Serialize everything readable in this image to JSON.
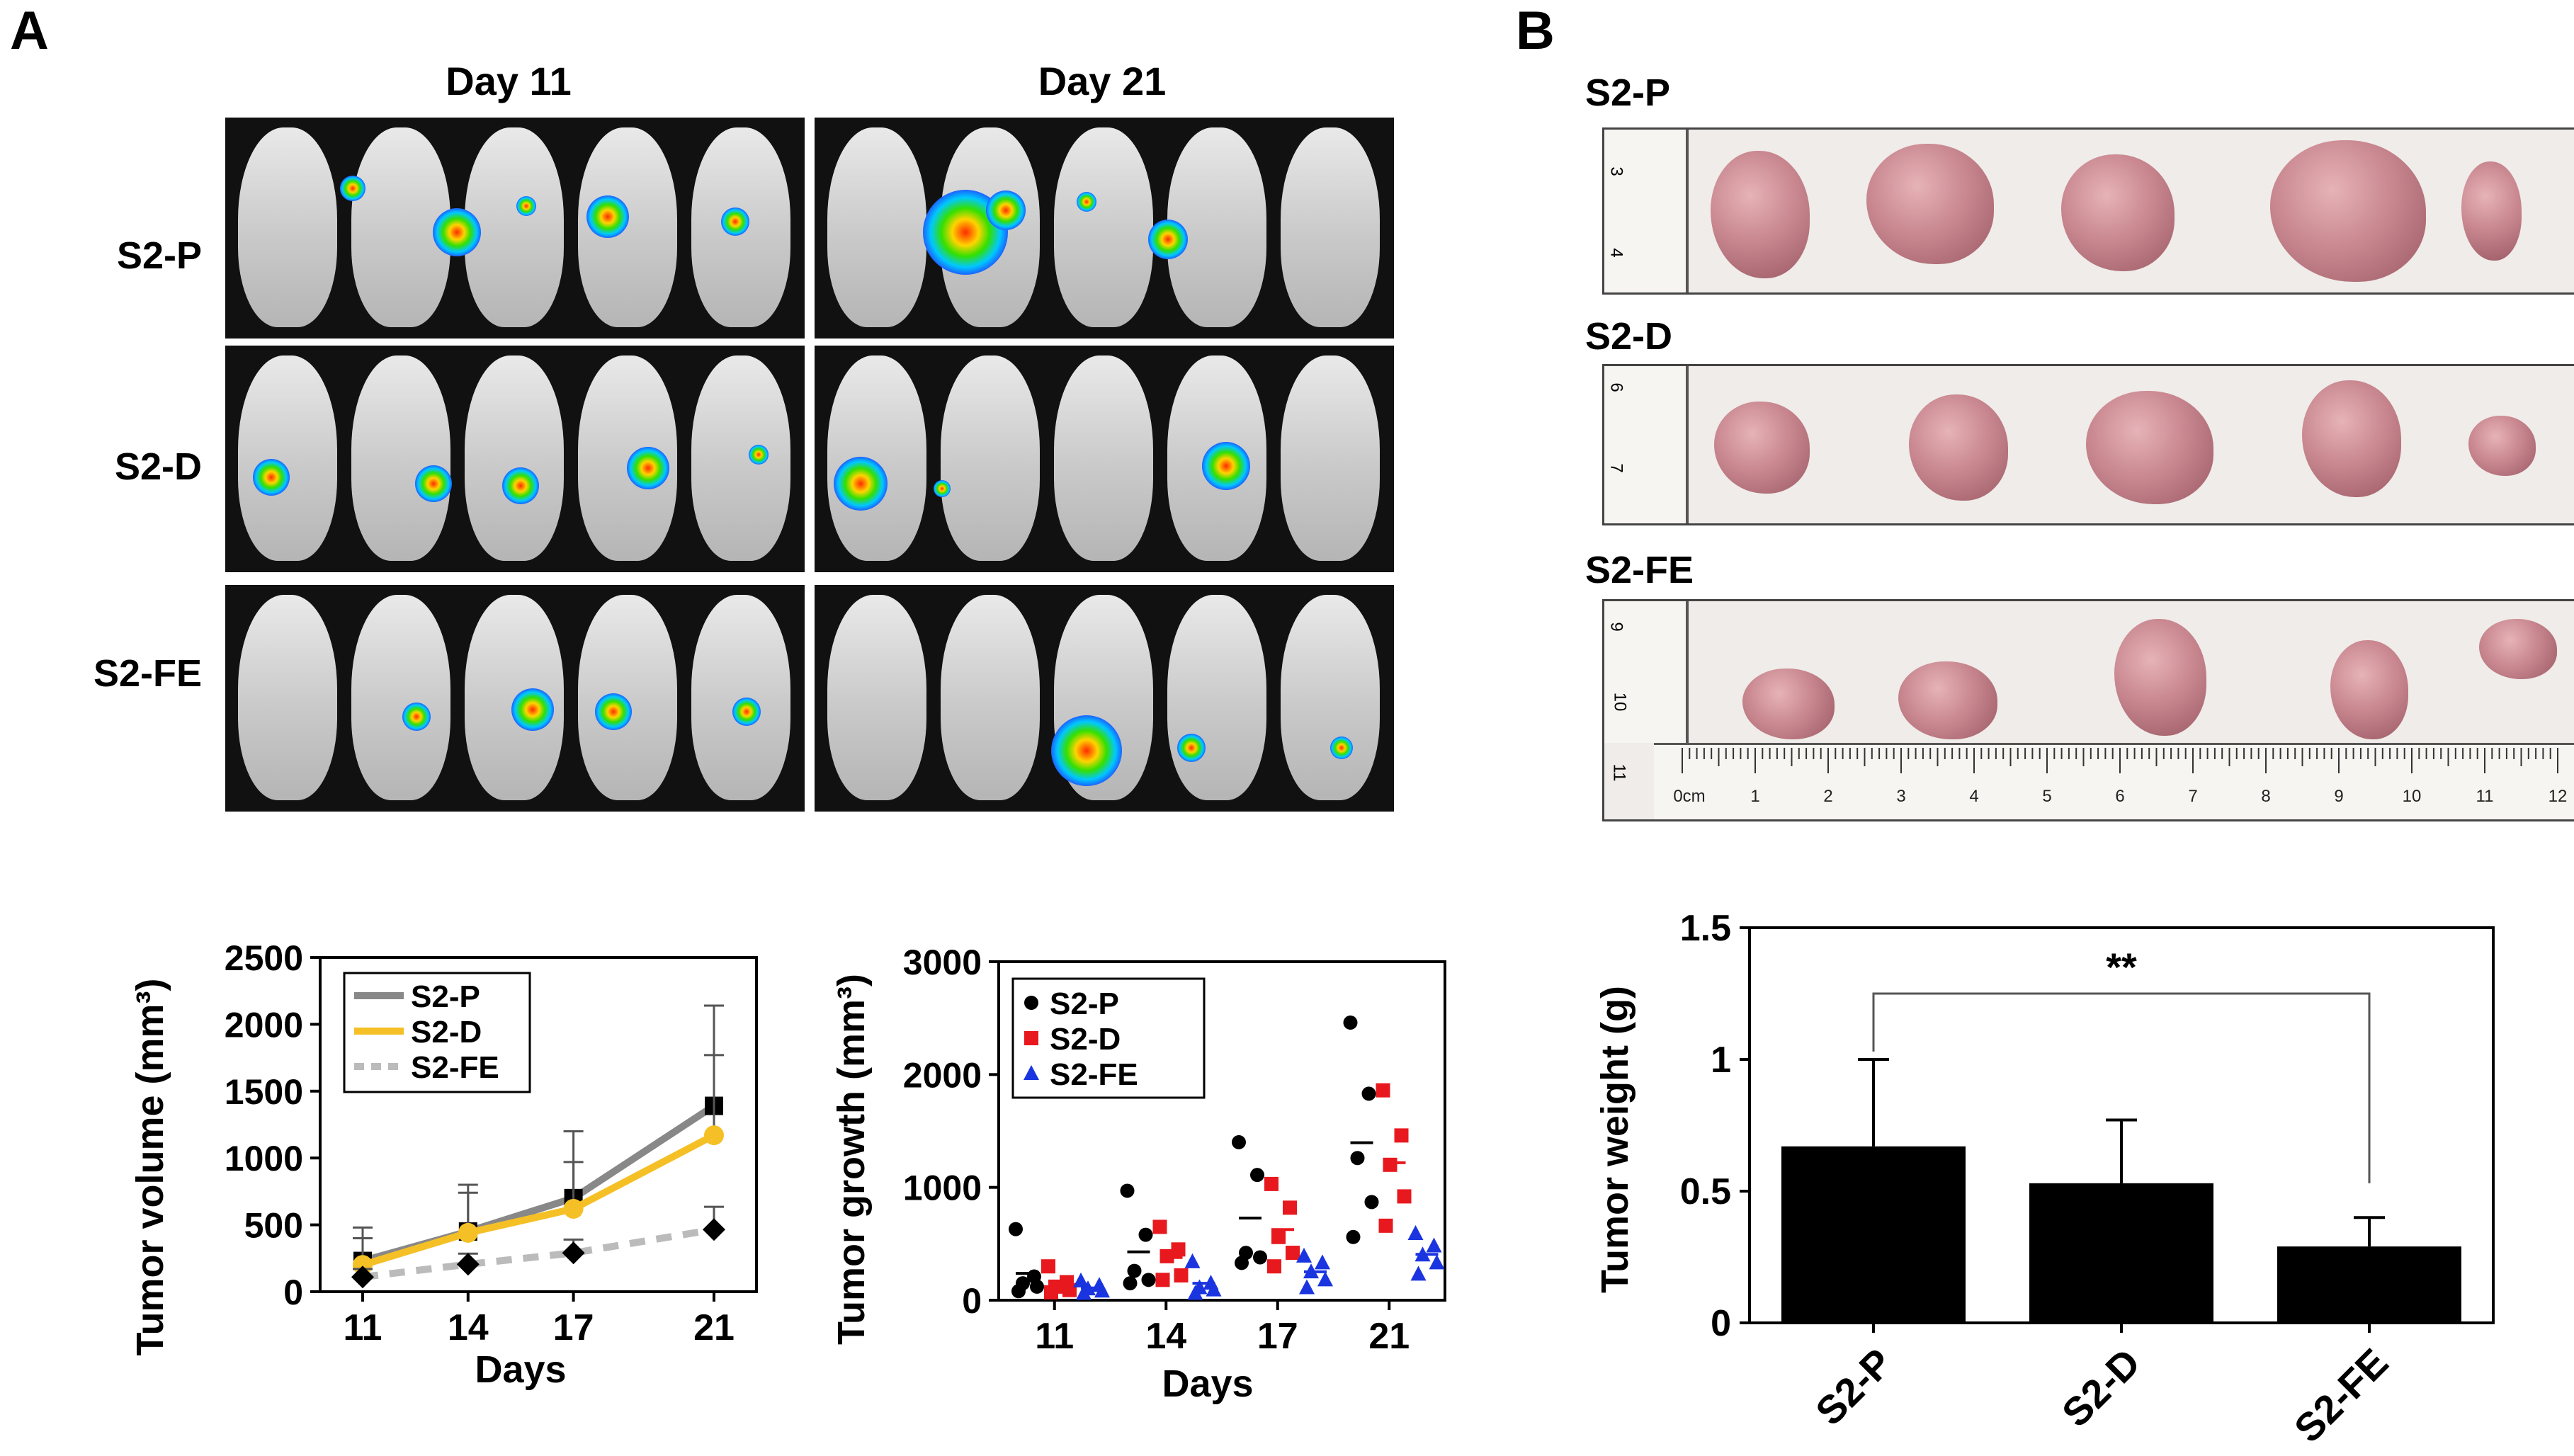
{
  "panel_a": {
    "label": "A",
    "col_labels": [
      "Day 11",
      "Day 21"
    ],
    "row_labels": [
      "S2-P",
      "S2-D",
      "S2-FE"
    ]
  },
  "panel_b": {
    "label": "B",
    "row_labels": [
      "S2-P",
      "S2-D",
      "S2-FE"
    ],
    "ruler_labels": [
      "0cm",
      "1",
      "2",
      "3",
      "4",
      "5",
      "6",
      "7",
      "8",
      "9",
      "10",
      "11",
      "12"
    ],
    "side_ruler_labels": [
      [
        "3",
        "4"
      ],
      [
        "6",
        "7"
      ],
      [
        "9",
        "10",
        "11"
      ]
    ]
  },
  "chart_data": [
    {
      "type": "line",
      "x": [
        11,
        14,
        17,
        21
      ],
      "series": [
        {
          "name": "S2-P",
          "values": [
            230,
            450,
            700,
            1390
          ],
          "errors": [
            250,
            350,
            500,
            750
          ],
          "color": "#888888",
          "marker": "square"
        },
        {
          "name": "S2-D",
          "values": [
            200,
            440,
            620,
            1170
          ],
          "errors": [
            200,
            300,
            350,
            600
          ],
          "color": "#F5C025",
          "marker": "circle"
        },
        {
          "name": "S2-FE",
          "values": [
            110,
            205,
            290,
            465
          ],
          "errors": [
            60,
            80,
            100,
            170
          ],
          "color": "#BBBBBB",
          "marker": "diamond"
        }
      ],
      "xlabel": "Days",
      "ylabel": "Tumor volume (mm³)",
      "ylim": [
        0,
        2500
      ],
      "yticks": [
        "0",
        "500",
        "1000",
        "1500",
        "2000",
        "2500"
      ],
      "xticks": [
        "11",
        "14",
        "17",
        "21"
      ]
    },
    {
      "type": "scatter",
      "categories": [
        "11",
        "14",
        "17",
        "21"
      ],
      "series": [
        {
          "name": "S2-P",
          "color": "#000000",
          "marker": "circle",
          "points": [
            [
              630,
              210,
              150,
              120,
              80
            ],
            [
              970,
              580,
              260,
              180,
              150
            ],
            [
              1400,
              1110,
              420,
              380,
              330
            ],
            [
              2460,
              1830,
              1260,
              870,
              560
            ]
          ],
          "means": [
            238,
            428,
            728,
            1396
          ]
        },
        {
          "name": "S2-D",
          "color": "#E8191E",
          "marker": "square",
          "points": [
            [
              300,
              160,
              120,
              90,
              70
            ],
            [
              650,
              450,
              390,
              220,
              180
            ],
            [
              1030,
              820,
              560,
              420,
              300
            ],
            [
              1860,
              1460,
              1200,
              920,
              660
            ]
          ],
          "means": [
            148,
            378,
            626,
            1218
          ]
        },
        {
          "name": "S2-FE",
          "color": "#1A35E0",
          "marker": "triangle",
          "points": [
            [
              170,
              130,
              100,
              80,
              60
            ],
            [
              340,
              150,
              110,
              90,
              60
            ],
            [
              390,
              330,
              250,
              180,
              110
            ],
            [
              590,
              480,
              400,
              330,
              230
            ]
          ],
          "means": [
            108,
            150,
            252,
            406
          ]
        }
      ],
      "xlabel": "Days",
      "ylabel": "Tumor growth (mm³)",
      "ylim": [
        0,
        3000
      ],
      "yticks": [
        "0",
        "1000",
        "2000",
        "3000"
      ]
    },
    {
      "type": "bar",
      "categories": [
        "S2-P",
        "S2-D",
        "S2-FE"
      ],
      "values": [
        0.67,
        0.53,
        0.29
      ],
      "errors": [
        0.33,
        0.24,
        0.11
      ],
      "ylabel": "Tumor weight (g)",
      "ylim": [
        0,
        1.5
      ],
      "yticks": [
        "0",
        "0.5",
        "1",
        "1.5"
      ],
      "annotation": "**"
    }
  ]
}
